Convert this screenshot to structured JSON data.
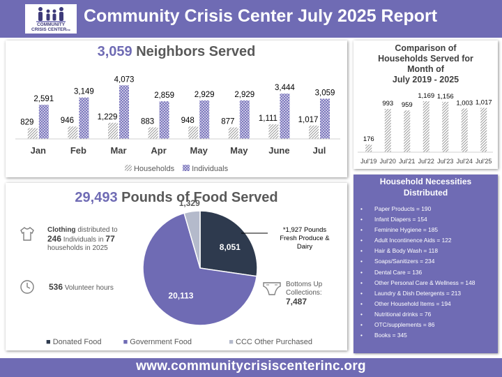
{
  "header": {
    "title": "Community Crisis Center July 2025 Report",
    "logo_line1": "COMMUNITY",
    "logo_line2": "CRISIS CENTER",
    "logo_suffix": "inc"
  },
  "neighbors": {
    "headline_number": "3,059",
    "headline_text": "Neighbors Served",
    "legend_households": "Households",
    "legend_individuals": "Individuals"
  },
  "comparison": {
    "title_line1": "Comparison of",
    "title_line2": "Households Served for",
    "title_line3": "Month of",
    "title_line4": "July 2019 - 2025"
  },
  "food": {
    "headline_number": "29,493",
    "headline_text": "Pounds of Food Served",
    "callout_line1": "*1,927 Pounds",
    "callout_line2": "Fresh Produce &",
    "callout_line3": "Dairy",
    "clothing_word": "Clothing",
    "clothing_text1": " distributed to",
    "clothing_num1": "246",
    "clothing_text2": " Individuals in ",
    "clothing_num2": "77",
    "clothing_text3": "households in 2025",
    "volunteer_num": "536",
    "volunteer_text": "Volunteer hours",
    "bottoms_line1": "Bottoms Up",
    "bottoms_line2": "Collections:",
    "bottoms_value": "7,487",
    "legend_donated": "Donated Food",
    "legend_government": "Government Food",
    "legend_other": "CCC Other Purchased"
  },
  "necessities": {
    "title_line1": "Household Necessities",
    "title_line2": "Distributed",
    "items": [
      "Paper Products = 190",
      "Infant Diapers = 154",
      "Feminine Hygiene = 185",
      "Adult Incontinence Aids = 122",
      "Hair & Body Wash = 118",
      "Soaps/Sanitizers = 234",
      "Dental Care = 136",
      "Other Personal Care & Wellness = 148",
      "Laundry & Dish Detergents = 213",
      "Other Household Items = 194",
      "Nutritional drinks = 76",
      "OTC/supplements = 86",
      "Books = 345"
    ]
  },
  "footer": {
    "url": "www.communitycrisiscenterinc.org"
  },
  "colors": {
    "brand": "#6F6BB4",
    "donated": "#2E3A4E",
    "government": "#6F6BB4",
    "other": "#B4BACB",
    "bar_pattern": "#8E89C4"
  },
  "icons": [
    "shirt-icon",
    "clock-icon",
    "diaper-icon"
  ],
  "chart_data": [
    {
      "type": "bar",
      "title": "",
      "categories": [
        "Jan",
        "Feb",
        "Mar",
        "Apr",
        "May",
        "May",
        "June",
        "Jul"
      ],
      "series": [
        {
          "name": "Households",
          "values": [
            829,
            946,
            1229,
            883,
            948,
            877,
            1111,
            1017
          ],
          "labels": [
            "829",
            "946",
            "1,229",
            "883",
            "948",
            "877",
            "1,111",
            "1,017"
          ]
        },
        {
          "name": "Individuals",
          "values": [
            2591,
            3149,
            4073,
            2859,
            2929,
            2929,
            3444,
            3059
          ],
          "labels": [
            "2,591",
            "3,149",
            "4,073",
            "2,859",
            "2,929",
            "2,929",
            "3,444",
            "3,059"
          ]
        }
      ],
      "ylim": [
        0,
        4300
      ],
      "legend": "bottom",
      "grid": false
    },
    {
      "type": "bar",
      "title": "Comparison of Households Served for Month of July 2019 - 2025",
      "categories": [
        "Jul'19",
        "Jul'20",
        "Jul'21",
        "Jul'22",
        "Jul'23",
        "Jul'24",
        "Jul'25"
      ],
      "values": [
        176,
        993,
        959,
        1169,
        1156,
        1003,
        1017
      ],
      "labels": [
        "176",
        "993",
        "959",
        "1,169",
        "1,156",
        "1,003",
        "1,017"
      ],
      "ylim": [
        0,
        1250
      ],
      "grid": false
    },
    {
      "type": "pie",
      "title": "29,493 Pounds of Food Served",
      "categories": [
        "Donated Food",
        "Government Food",
        "CCC Other Purchased"
      ],
      "values": [
        8051,
        20113,
        1329
      ],
      "labels": [
        "8,051",
        "20,113",
        "1,329"
      ],
      "legend": "bottom"
    }
  ]
}
